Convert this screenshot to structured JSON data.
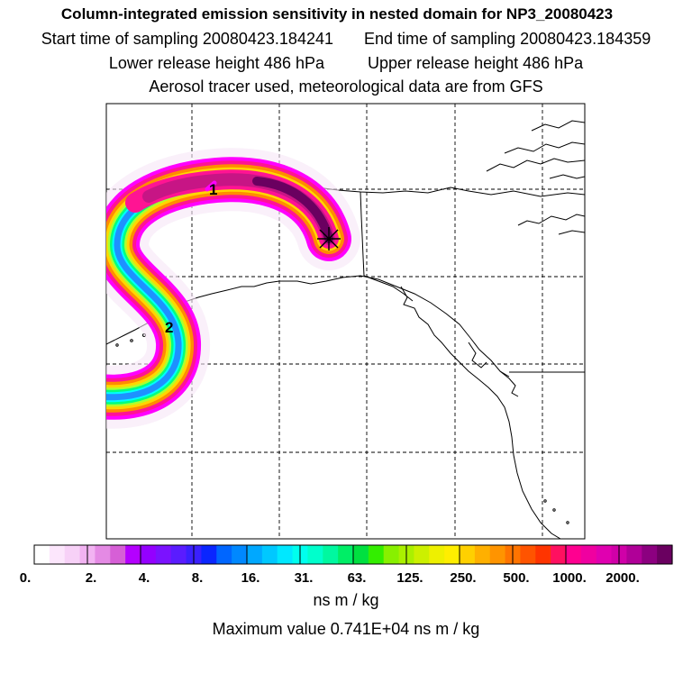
{
  "header": {
    "title": "Column-integrated emission sensitivity in nested domain for NP3_20080423",
    "start_label": "Start time of sampling 20080423.184241",
    "end_label": "End time of sampling 20080423.184359",
    "lower_label": "Lower release height  486 hPa",
    "upper_label": "Upper release height  486 hPa",
    "tracer_line": "Aerosol tracer used, meteorological data are from GFS"
  },
  "map": {
    "markers": [
      {
        "id": "release",
        "symbol": "star-asterisk"
      },
      {
        "id": "day1",
        "text": "1"
      },
      {
        "id": "day2",
        "text": "2"
      }
    ],
    "plume_colors": [
      "#f7e6f7",
      "#e48ae4",
      "#ff00ff",
      "#ff1493",
      "#ff8c00",
      "#ffd700",
      "#adff2f",
      "#00ff7f",
      "#00ffff",
      "#1e90ff",
      "#8a2be2",
      "#4b0082"
    ]
  },
  "colorbar": {
    "tick_labels": [
      "0.",
      "2.",
      "4.",
      "8.",
      "16.",
      "31.",
      "63.",
      "125.",
      "250.",
      "500.",
      "1000.",
      "2000."
    ],
    "swatches": [
      "#ffffff",
      "#fce6fc",
      "#f7d1f7",
      "#f2b3f2",
      "#e48ae4",
      "#d65fd6",
      "#b400ff",
      "#9400ff",
      "#7b12ff",
      "#5a1cff",
      "#3a20ff",
      "#0a26ff",
      "#0066ff",
      "#0088ff",
      "#00a8ff",
      "#00c8ff",
      "#00e8ff",
      "#00ffee",
      "#00ffcc",
      "#00f8a0",
      "#00ee66",
      "#00e040",
      "#33ee00",
      "#88f000",
      "#aaf000",
      "#ccf000",
      "#eef000",
      "#ffee00",
      "#ffd000",
      "#ffb000",
      "#ff9400",
      "#ff7400",
      "#ff5400",
      "#ff3400",
      "#ff1060",
      "#ff0090",
      "#f000a0",
      "#e000b0",
      "#d000a8",
      "#b00098",
      "#8c0080",
      "#6a0060"
    ],
    "units": "ns m / kg",
    "max_value_text": "Maximum value  0.741E+04 ns m / kg"
  }
}
